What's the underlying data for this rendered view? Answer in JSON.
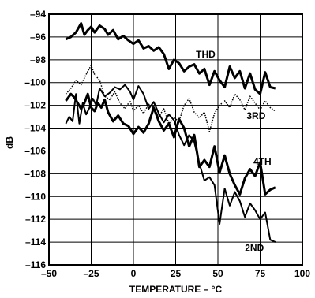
{
  "chart_data": {
    "type": "line",
    "title": "",
    "xlabel": "TEMPERATURE – °C",
    "ylabel": "dB",
    "xlim": [
      -50,
      100
    ],
    "ylim": [
      -116,
      -94
    ],
    "xticks": [
      "–50",
      "–25",
      "0",
      "25",
      "50",
      "75",
      "100"
    ],
    "yticks": [
      "–94",
      "–96",
      "–98",
      "–100",
      "–102",
      "–104",
      "–106",
      "–108",
      "–110",
      "–112",
      "–114",
      "–116"
    ],
    "grid": true,
    "series": [
      {
        "name": "THD",
        "style": "solid-thick",
        "x": [
          -40,
          -37,
          -34,
          -31,
          -29,
          -27,
          -25,
          -23,
          -20,
          -17,
          -15,
          -12,
          -9,
          -6,
          -3,
          0,
          3,
          6,
          9,
          12,
          15,
          18,
          21,
          24,
          27,
          30,
          33,
          36,
          39,
          42,
          45,
          48,
          51,
          54,
          57,
          60,
          63,
          66,
          69,
          72,
          75,
          78,
          81,
          84
        ],
        "values": [
          -96.2,
          -96.0,
          -95.6,
          -94.8,
          -95.8,
          -95.4,
          -95.1,
          -95.6,
          -95.0,
          -95.3,
          -95.8,
          -95.4,
          -96.2,
          -95.9,
          -96.3,
          -96.6,
          -96.3,
          -97.0,
          -96.8,
          -97.2,
          -96.9,
          -97.5,
          -98.8,
          -98.0,
          -98.3,
          -99.0,
          -98.6,
          -98.4,
          -99.2,
          -98.8,
          -100.2,
          -99.0,
          -99.8,
          -100.4,
          -98.6,
          -99.6,
          -99.0,
          -100.5,
          -99.2,
          -100.6,
          -101.0,
          -99.1,
          -100.4,
          -100.5
        ]
      },
      {
        "name": "3RD",
        "style": "dotted",
        "x": [
          -40,
          -37,
          -34,
          -31,
          -29,
          -27,
          -25,
          -23,
          -20,
          -17,
          -14,
          -11,
          -8,
          -5,
          -2,
          0,
          3,
          6,
          9,
          12,
          15,
          18,
          21,
          24,
          27,
          30,
          33,
          36,
          39,
          42,
          45,
          48,
          51,
          54,
          57,
          60,
          63,
          66,
          69,
          72,
          75,
          78,
          81,
          84
        ],
        "values": [
          -101.0,
          -100.5,
          -99.8,
          -100.2,
          -99.6,
          -99.0,
          -98.5,
          -99.3,
          -99.8,
          -101.2,
          -101.5,
          -100.8,
          -101.8,
          -102.3,
          -101.6,
          -102.5,
          -102.0,
          -102.7,
          -101.9,
          -102.2,
          -103.0,
          -102.3,
          -103.6,
          -103.1,
          -103.4,
          -102.0,
          -101.4,
          -102.6,
          -103.1,
          -102.6,
          -104.3,
          -102.7,
          -102.0,
          -101.6,
          -102.2,
          -101.0,
          -101.5,
          -102.4,
          -101.2,
          -101.8,
          -102.4,
          -101.6,
          -102.2,
          -102.5
        ]
      },
      {
        "name": "4TH",
        "style": "solid-thick",
        "x": [
          -40,
          -37,
          -35,
          -33,
          -31,
          -29,
          -27,
          -25,
          -23,
          -21,
          -19,
          -17,
          -15,
          -12,
          -9,
          -6,
          -3,
          0,
          3,
          6,
          9,
          12,
          15,
          18,
          21,
          24,
          27,
          30,
          33,
          36,
          39,
          42,
          45,
          48,
          51,
          54,
          57,
          60,
          63,
          66,
          69,
          72,
          75,
          78,
          81,
          84
        ],
        "values": [
          -101.6,
          -101.0,
          -101.3,
          -101.8,
          -102.3,
          -101.8,
          -101.0,
          -102.2,
          -102.5,
          -101.8,
          -102.2,
          -101.5,
          -102.6,
          -103.4,
          -102.9,
          -103.6,
          -103.8,
          -104.5,
          -103.9,
          -104.4,
          -103.6,
          -102.2,
          -103.4,
          -104.2,
          -103.6,
          -104.8,
          -103.2,
          -104.0,
          -105.6,
          -104.6,
          -107.4,
          -106.8,
          -107.4,
          -105.6,
          -107.9,
          -106.4,
          -108.0,
          -109.0,
          -109.8,
          -108.4,
          -107.6,
          -108.2,
          -107.0,
          -109.8,
          -109.4,
          -109.2
        ]
      },
      {
        "name": "2ND",
        "style": "solid",
        "x": [
          -40,
          -38,
          -36,
          -34,
          -32,
          -30,
          -28,
          -26,
          -24,
          -22,
          -20,
          -17,
          -14,
          -11,
          -8,
          -5,
          -2,
          0,
          3,
          6,
          9,
          12,
          15,
          18,
          21,
          24,
          27,
          30,
          33,
          36,
          39,
          42,
          45,
          48,
          51,
          54,
          57,
          60,
          63,
          66,
          69,
          72,
          75,
          78,
          81,
          84
        ],
        "values": [
          -103.6,
          -103.0,
          -103.4,
          -101.0,
          -103.6,
          -101.8,
          -102.8,
          -102.2,
          -101.4,
          -102.0,
          -100.5,
          -101.2,
          -100.9,
          -100.4,
          -100.6,
          -100.2,
          -100.8,
          -101.5,
          -100.3,
          -101.0,
          -102.3,
          -101.7,
          -102.7,
          -103.5,
          -102.8,
          -103.3,
          -104.6,
          -105.5,
          -104.6,
          -105.2,
          -107.1,
          -108.6,
          -108.3,
          -109.0,
          -112.4,
          -109.3,
          -110.8,
          -109.6,
          -110.4,
          -111.8,
          -110.6,
          -111.2,
          -112.0,
          -111.4,
          -113.8,
          -114.0
        ]
      }
    ],
    "series_labels": [
      "THD",
      "3RD",
      "4TH",
      "2ND"
    ]
  }
}
